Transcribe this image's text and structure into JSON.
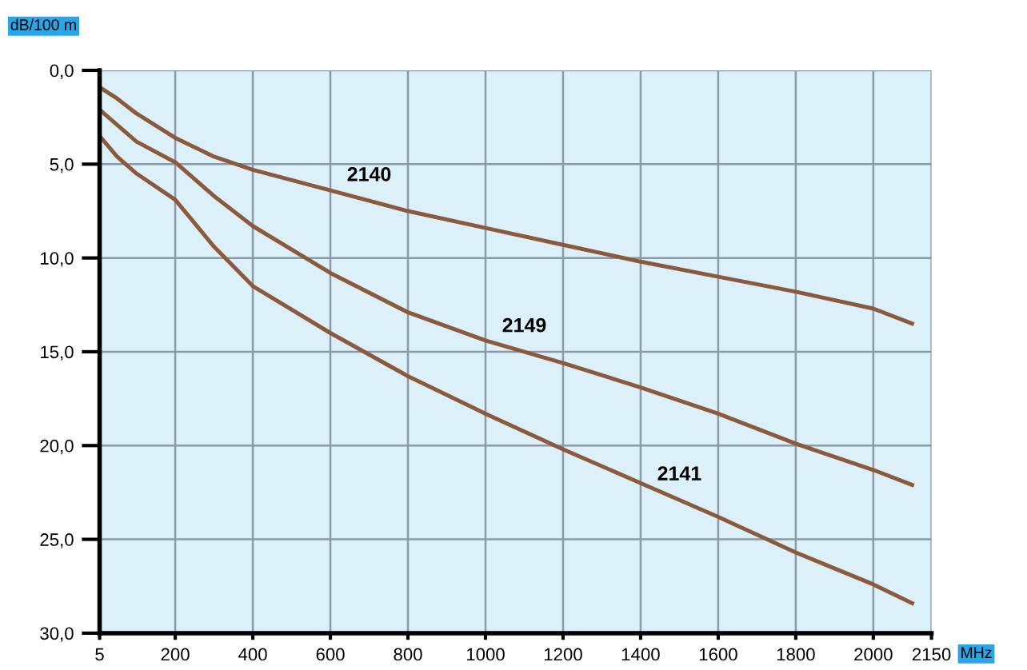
{
  "chart_data": {
    "type": "line",
    "xlabel": "MHz",
    "ylabel": "dB/100 m",
    "x": [
      5,
      50,
      100,
      200,
      300,
      400,
      600,
      800,
      1000,
      1200,
      1400,
      1600,
      1800,
      2000,
      2100
    ],
    "series": [
      {
        "color": "#8b5a3c",
        "values": [
          0.9,
          1.5,
          2.3,
          3.6,
          4.6,
          5.3,
          6.4,
          7.5,
          8.4,
          9.3,
          10.2,
          11.0,
          11.8,
          12.7,
          13.5
        ]
      },
      {
        "color": "#8b5a3c",
        "values": [
          2.1,
          2.9,
          3.8,
          4.9,
          6.7,
          8.3,
          10.8,
          12.9,
          14.4,
          15.6,
          16.9,
          18.3,
          19.9,
          21.3,
          22.1
        ]
      },
      {
        "color": "#8b5a3c",
        "values": [
          3.5,
          4.6,
          5.5,
          6.9,
          9.4,
          11.5,
          14.0,
          16.3,
          18.3,
          20.2,
          22.0,
          23.8,
          25.7,
          27.4,
          28.4
        ]
      }
    ],
    "annotations": [
      {
        "text": "2140",
        "x": 700,
        "y": 6.95
      },
      {
        "text": "2149",
        "x": 1100,
        "y": 15.0
      },
      {
        "text": "2141",
        "x": 1500,
        "y": 22.9
      }
    ],
    "xlim": [
      5,
      2150
    ],
    "xticks": [
      5,
      200,
      400,
      600,
      800,
      1000,
      1200,
      1400,
      1600,
      1800,
      2000,
      2150
    ],
    "ylim": [
      30,
      0
    ],
    "yticks": [
      {
        "value": 0,
        "label": "0,0"
      },
      {
        "value": 5,
        "label": "5,0"
      },
      {
        "value": 10,
        "label": "10,0"
      },
      {
        "value": 15,
        "label": "15,0"
      },
      {
        "value": 20,
        "label": "20,0"
      },
      {
        "value": 25,
        "label": "25,0"
      },
      {
        "value": 30,
        "label": "30,0"
      }
    ],
    "grid": true,
    "legend": false,
    "marker": "none",
    "line_style": "solid"
  }
}
